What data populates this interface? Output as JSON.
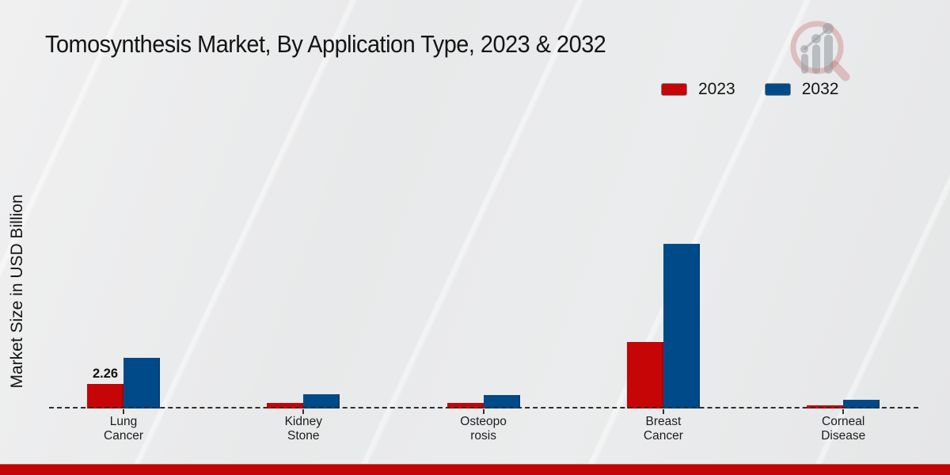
{
  "page": {
    "background_color": "#e9eaeb",
    "footer_bar_color": "#c20406"
  },
  "header": {
    "title": "Tomosynthesis Market, By Application Type, 2023 & 2032",
    "logo_icon": "bar-chart-magnifier-watermark"
  },
  "legend": {
    "position": "top-right",
    "items": [
      {
        "label": "2023",
        "color": "#c60506"
      },
      {
        "label": "2032",
        "color": "#014a89"
      }
    ]
  },
  "chart_data": {
    "type": "bar",
    "title": "Tomosynthesis Market, By Application Type, 2023 & 2032",
    "ylabel": "Market Size in USD Billion",
    "xlabel": "",
    "units": "USD Billion",
    "categories": [
      "Lung Cancer",
      "Kidney Stone",
      "Osteoporosis",
      "Breast Cancer",
      "Corneal Disease"
    ],
    "category_label_lines": [
      [
        "Lung",
        "Cancer"
      ],
      [
        "Kidney",
        "Stone"
      ],
      [
        "Osteopo",
        "rosis"
      ],
      [
        "Breast",
        "Cancer"
      ],
      [
        "Corneal",
        "Disease"
      ]
    ],
    "series": [
      {
        "name": "2023",
        "color": "#c60506",
        "values": [
          2.26,
          0.51,
          0.5,
          6.12,
          0.29
        ]
      },
      {
        "name": "2032",
        "color": "#014a89",
        "values": [
          4.67,
          1.31,
          1.27,
          15.16,
          0.8
        ]
      }
    ],
    "data_labels": [
      {
        "category_index": 0,
        "series_index": 0,
        "text": "2.26"
      }
    ],
    "ylim": [
      0,
      16
    ],
    "grid": false,
    "baseline_style": "dashed",
    "legend_position": "top-right"
  }
}
